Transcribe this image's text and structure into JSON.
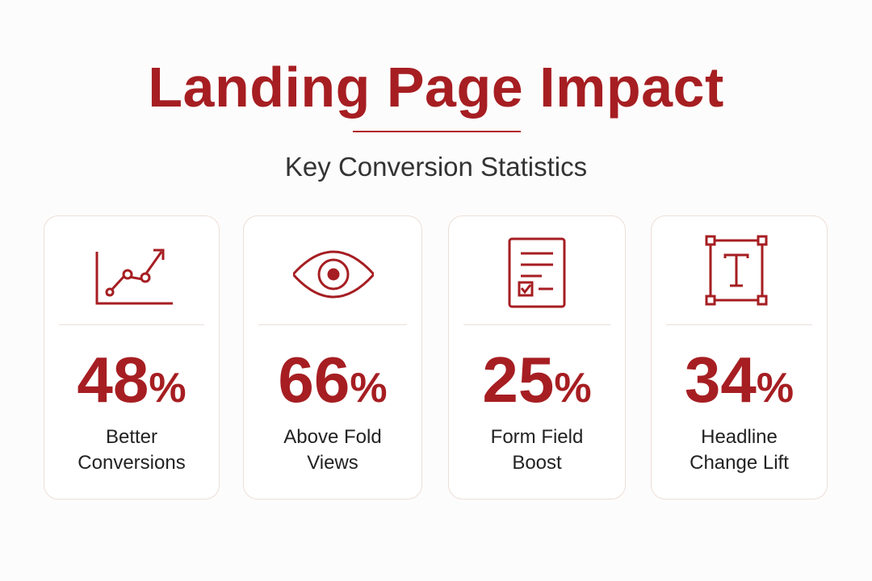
{
  "header": {
    "title": "Landing Page Impact",
    "subtitle": "Key Conversion Statistics"
  },
  "cards": [
    {
      "number": "48",
      "unit": "%",
      "label": [
        "Better",
        "Conversions"
      ]
    },
    {
      "number": "66",
      "unit": "%",
      "label": [
        "Above Fold",
        "Views"
      ]
    },
    {
      "number": "25",
      "unit": "%",
      "label": [
        "Form Field",
        "Boost"
      ]
    },
    {
      "number": "34",
      "unit": "%",
      "label": [
        "Headline",
        "Change Lift"
      ]
    }
  ]
}
